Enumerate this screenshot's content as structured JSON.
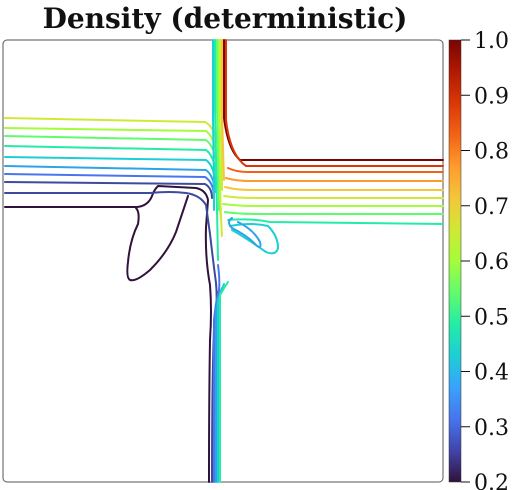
{
  "title": "Density (deterministic)",
  "chart_data": {
    "type": "contour",
    "title": "Density (deterministic)",
    "colormap": "turbo",
    "colorbar": {
      "min": 0.2,
      "max": 1.0,
      "ticks": [
        "1.0",
        "0.9",
        "0.8",
        "0.7",
        "0.6",
        "0.5",
        "0.4",
        "0.3",
        "0.2"
      ]
    },
    "contour_levels": [
      0.25,
      0.3,
      0.35,
      0.4,
      0.45,
      0.5,
      0.55,
      0.6,
      0.65,
      0.7,
      0.75,
      0.8,
      0.85,
      0.95
    ],
    "colors": {
      "0.25": "#30123b",
      "0.3": "#3e4a9f",
      "0.35": "#4776ee",
      "0.4": "#2ea3e7",
      "0.45": "#1bcfd4",
      "0.5": "#24eca6",
      "0.55": "#61fc6c",
      "0.6": "#a4fc3c",
      "0.65": "#d1e935",
      "0.7": "#f5c63a",
      "0.75": "#fe9b2d",
      "0.8": "#f36315",
      "0.85": "#d93806",
      "0.95": "#7a0403"
    },
    "grid": false,
    "axes_visible": false
  }
}
